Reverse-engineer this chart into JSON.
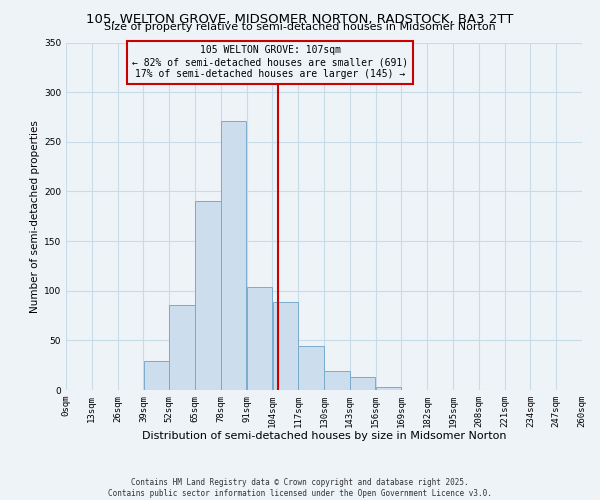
{
  "title": "105, WELTON GROVE, MIDSOMER NORTON, RADSTOCK, BA3 2TT",
  "subtitle": "Size of property relative to semi-detached houses in Midsomer Norton",
  "xlabel": "Distribution of semi-detached houses by size in Midsomer Norton",
  "ylabel": "Number of semi-detached properties",
  "bin_labels": [
    "0sqm",
    "13sqm",
    "26sqm",
    "39sqm",
    "52sqm",
    "65sqm",
    "78sqm",
    "91sqm",
    "104sqm",
    "117sqm",
    "130sqm",
    "143sqm",
    "156sqm",
    "169sqm",
    "182sqm",
    "195sqm",
    "208sqm",
    "221sqm",
    "234sqm",
    "247sqm",
    "260sqm"
  ],
  "bin_edges": [
    0,
    13,
    26,
    39,
    52,
    65,
    78,
    91,
    104,
    117,
    130,
    143,
    156,
    169,
    182,
    195,
    208,
    221,
    234,
    247,
    260
  ],
  "counts": [
    0,
    0,
    0,
    29,
    86,
    190,
    271,
    104,
    89,
    44,
    19,
    13,
    3,
    0,
    0,
    0,
    0,
    0,
    0,
    0
  ],
  "bar_color": "#ccdded",
  "bar_edge_color": "#7aabcc",
  "property_value": 107,
  "vline_color": "#cc0000",
  "annotation_box_edge": "#cc0000",
  "annotation_line1": "105 WELTON GROVE: 107sqm",
  "annotation_line2": "← 82% of semi-detached houses are smaller (691)",
  "annotation_line3": "17% of semi-detached houses are larger (145) →",
  "ylim": [
    0,
    350
  ],
  "yticks": [
    0,
    50,
    100,
    150,
    200,
    250,
    300,
    350
  ],
  "grid_color": "#c8dce8",
  "background_color": "#eef3f7",
  "footer_text": "Contains HM Land Registry data © Crown copyright and database right 2025.\nContains public sector information licensed under the Open Government Licence v3.0.",
  "title_fontsize": 9.5,
  "subtitle_fontsize": 8,
  "xlabel_fontsize": 8,
  "ylabel_fontsize": 7.5,
  "tick_fontsize": 6.5,
  "annotation_fontsize": 7,
  "footer_fontsize": 5.5
}
